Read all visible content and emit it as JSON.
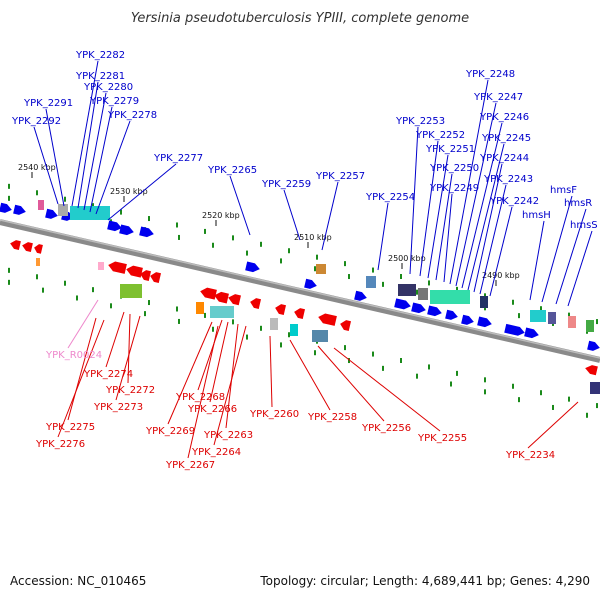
{
  "title": "Yersinia pseudotuberculosis YPIII, complete genome",
  "footer": {
    "accession": "Accession: NC_010465",
    "summary": "Topology: circular; Length: 4,689,441 bp; Genes: 4,290"
  },
  "colors": {
    "forward_label": "#0000cc",
    "reverse_label": "#dd0000",
    "rna_label": "#ee88cc",
    "forward_gene": "#0000ee",
    "reverse_gene": "#ee0000",
    "backbone": "#888888"
  },
  "scale_ticks": [
    "2540 kbp",
    "2530 kbp",
    "2520 kbp",
    "2510 kbp",
    "2500 kbp",
    "2490 kbp"
  ],
  "forward_genes": [
    "YPK_2292",
    "YPK_2291",
    "YPK_2282",
    "YPK_2281",
    "YPK_2280",
    "YPK_2279",
    "YPK_2278",
    "YPK_2277",
    "YPK_2265",
    "YPK_2259",
    "YPK_2257",
    "YPK_2254",
    "YPK_2253",
    "YPK_2252",
    "YPK_2251",
    "YPK_2250",
    "YPK_2249",
    "YPK_2248",
    "YPK_2247",
    "YPK_2246",
    "YPK_2245",
    "YPK_2244",
    "YPK_2243",
    "YPK_2242",
    "hmsH",
    "hmsF",
    "hmsR",
    "hmsS"
  ],
  "reverse_genes": [
    "YPK_R0024",
    "YPK_2274",
    "YPK_2272",
    "YPK_2273",
    "YPK_2275",
    "YPK_2276",
    "YPK_2268",
    "YPK_2266",
    "YPK_2269",
    "YPK_2263",
    "YPK_2264",
    "YPK_2267",
    "YPK_2260",
    "YPK_2258",
    "YPK_2256",
    "YPK_2255",
    "YPK_2234"
  ]
}
